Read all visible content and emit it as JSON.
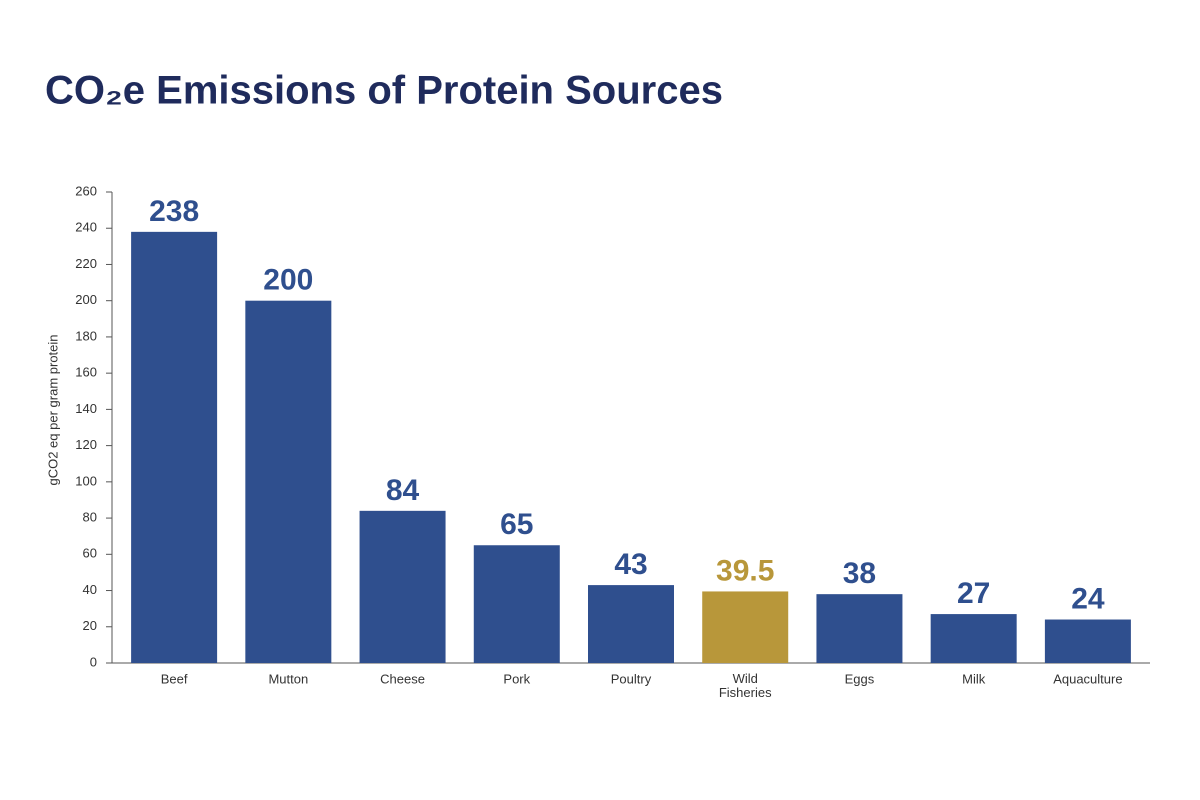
{
  "chart_data": {
    "type": "bar",
    "title": "CO₂e Emissions of Protein Sources",
    "y_label": "gCO2 eq per gram protein",
    "categories": [
      "Beef",
      "Mutton",
      "Cheese",
      "Pork",
      "Poultry",
      "Wild Fisheries",
      "Eggs",
      "Milk",
      "Aquaculture"
    ],
    "values": [
      238,
      200,
      84,
      65,
      43,
      39.5,
      38,
      27,
      24
    ],
    "colors": [
      "#2f4f8e",
      "#2f4f8e",
      "#2f4f8e",
      "#2f4f8e",
      "#2f4f8e",
      "#b8973a",
      "#2f4f8e",
      "#2f4f8e",
      "#2f4f8e"
    ],
    "ylim": [
      0,
      260
    ],
    "yticks": [
      0,
      20,
      40,
      60,
      80,
      100,
      120,
      140,
      160,
      180,
      200,
      220,
      240,
      260
    ],
    "grid": false
  }
}
